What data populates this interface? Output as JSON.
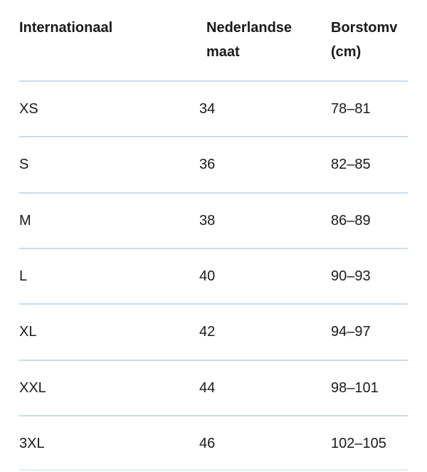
{
  "table": {
    "headers": [
      "Internationaal",
      "Nederlandse maat",
      "Borstomv (cm)"
    ],
    "headers_lines": [
      [
        "Internationaal"
      ],
      [
        "Nederlandse",
        "maat"
      ],
      [
        "Borstomv",
        "(cm)"
      ]
    ],
    "rows": [
      [
        "XS",
        "34",
        "78–81"
      ],
      [
        "S",
        "36",
        "82–85"
      ],
      [
        "M",
        "38",
        "86–89"
      ],
      [
        "L",
        "40",
        "90–93"
      ],
      [
        "XL",
        "42",
        "94–97"
      ],
      [
        "XXL",
        "44",
        "98–101"
      ],
      [
        "3XL",
        "46",
        "102–105"
      ]
    ],
    "divider_color": "#c8dcec"
  }
}
